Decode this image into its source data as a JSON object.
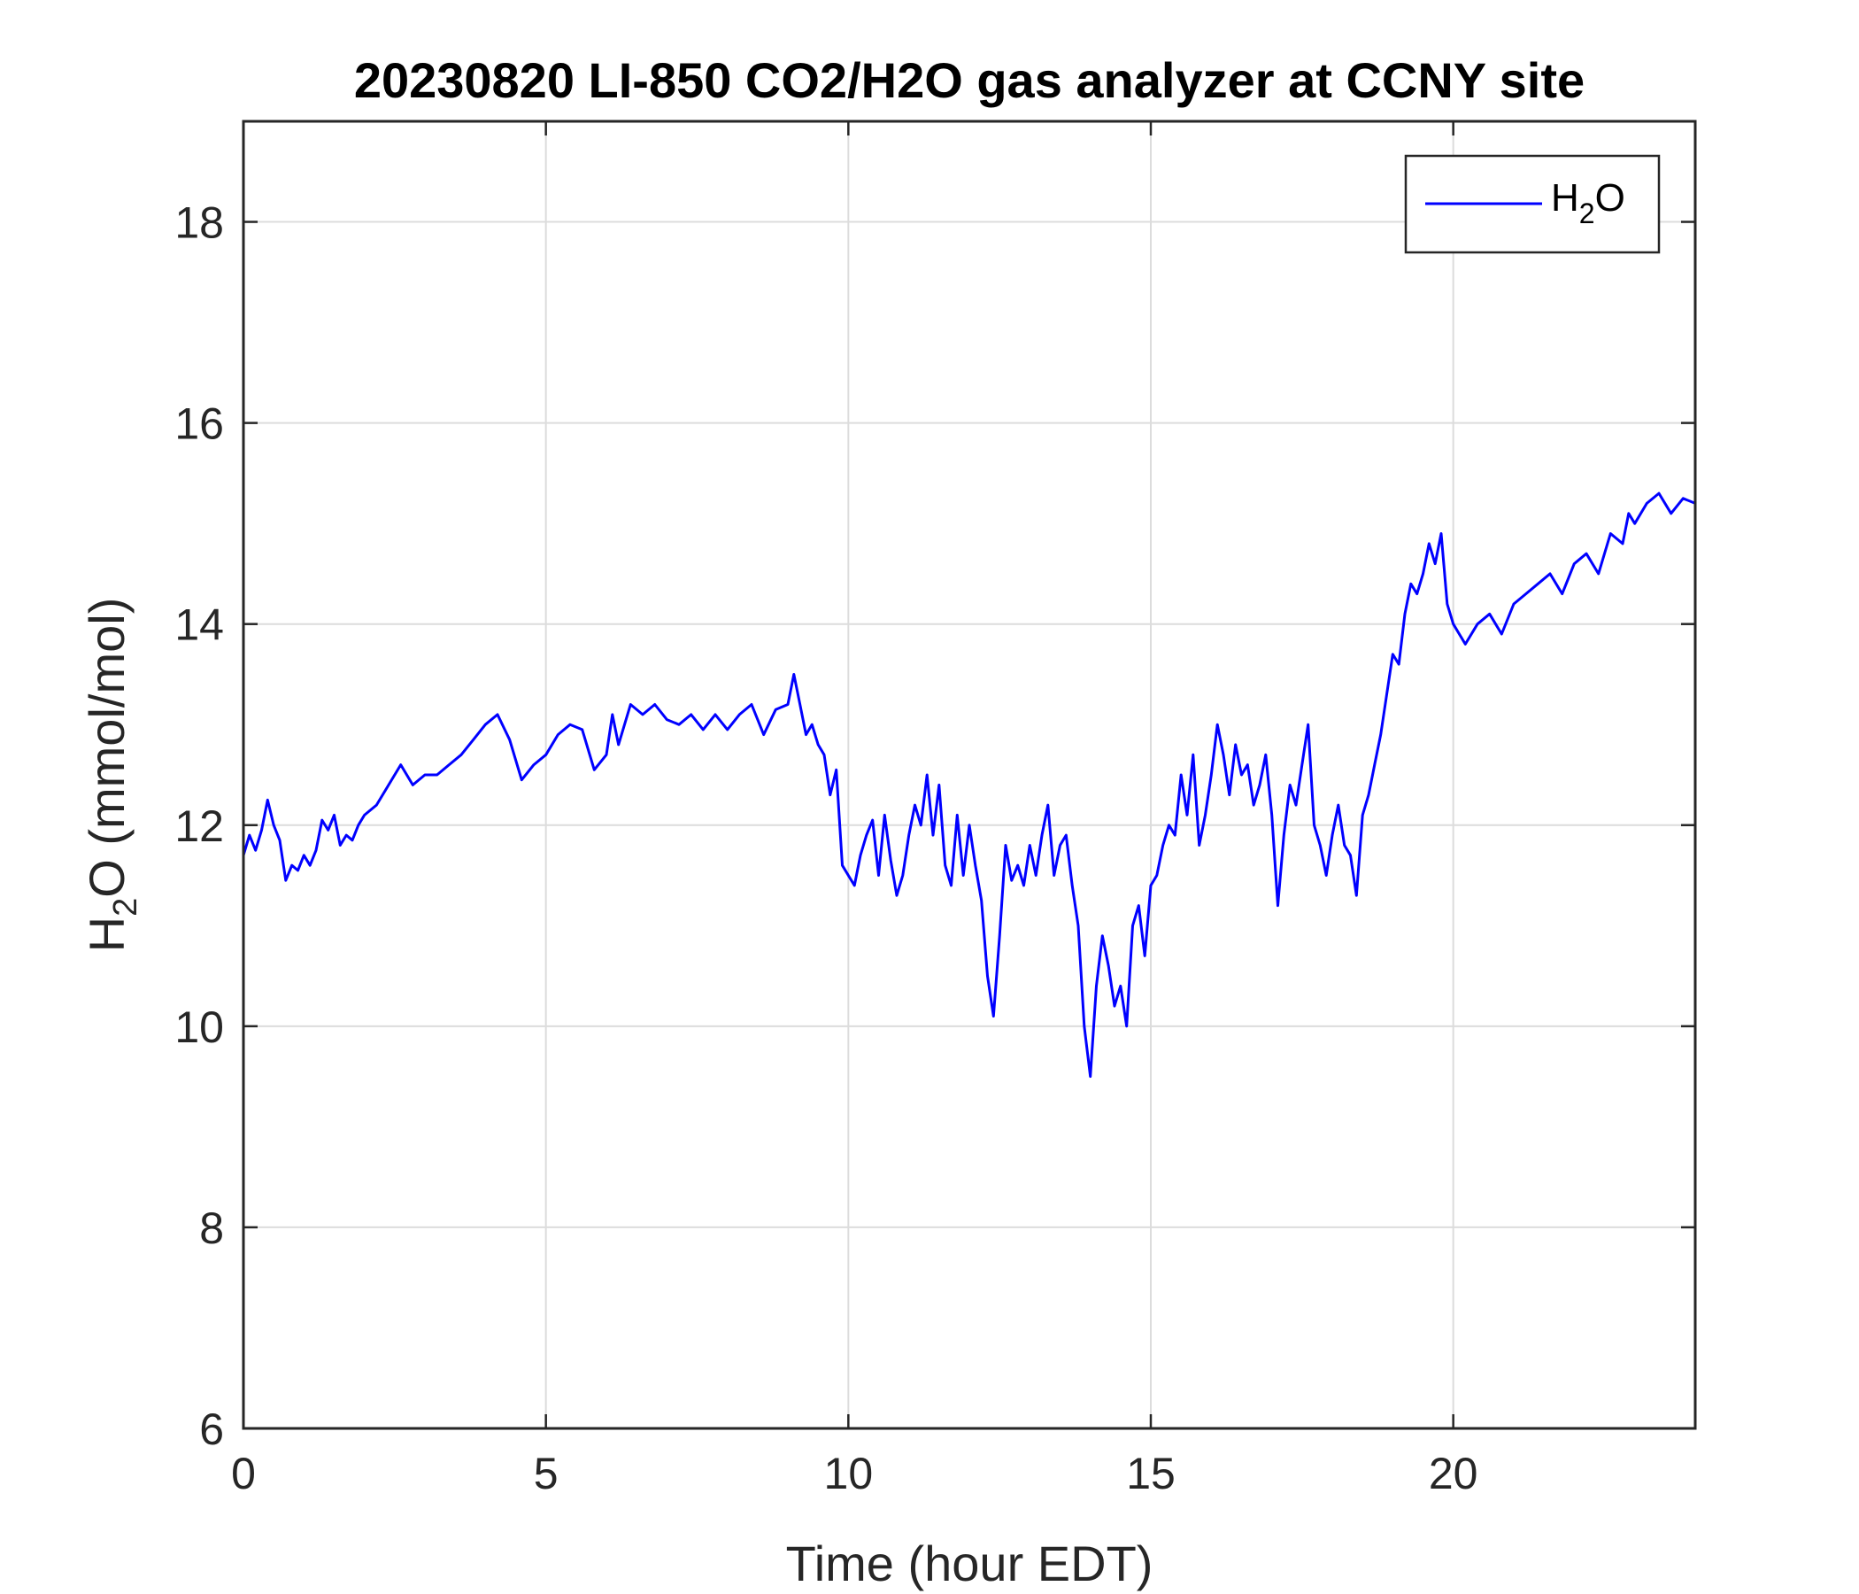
{
  "chart_data": {
    "type": "line",
    "title": "20230820 LI-850 CO2/H2O gas analyzer at CCNY site",
    "xlabel": "Time (hour EDT)",
    "ylabel": "H2O (mmol/mol)",
    "ylabel_parts": {
      "base": "H",
      "sub": "2",
      "rest": "O (mmol/mol)"
    },
    "xlim": [
      0,
      24
    ],
    "ylim": [
      6,
      19
    ],
    "xticks": [
      0,
      5,
      10,
      15,
      20
    ],
    "yticks": [
      6,
      8,
      10,
      12,
      14,
      16,
      18
    ],
    "grid": true,
    "legend_position": "top-right",
    "legend_label_parts": {
      "base": "H",
      "sub": "2",
      "rest": "O"
    },
    "series": [
      {
        "name": "H2O",
        "color": "#0000ff",
        "x": [
          0,
          0.1,
          0.2,
          0.3,
          0.4,
          0.5,
          0.6,
          0.7,
          0.8,
          0.9,
          1.0,
          1.1,
          1.2,
          1.3,
          1.4,
          1.5,
          1.6,
          1.7,
          1.8,
          1.9,
          2.0,
          2.2,
          2.4,
          2.6,
          2.8,
          3.0,
          3.2,
          3.4,
          3.6,
          3.8,
          4.0,
          4.2,
          4.4,
          4.6,
          4.8,
          5.0,
          5.2,
          5.4,
          5.6,
          5.8,
          6.0,
          6.1,
          6.2,
          6.4,
          6.6,
          6.8,
          7.0,
          7.2,
          7.4,
          7.6,
          7.8,
          8.0,
          8.2,
          8.4,
          8.6,
          8.8,
          9.0,
          9.1,
          9.2,
          9.3,
          9.4,
          9.5,
          9.6,
          9.7,
          9.8,
          9.9,
          10.0,
          10.1,
          10.2,
          10.3,
          10.4,
          10.5,
          10.6,
          10.7,
          10.8,
          10.9,
          11.0,
          11.1,
          11.2,
          11.3,
          11.4,
          11.5,
          11.6,
          11.7,
          11.8,
          11.9,
          12.0,
          12.1,
          12.2,
          12.3,
          12.4,
          12.5,
          12.6,
          12.7,
          12.8,
          12.9,
          13.0,
          13.1,
          13.2,
          13.3,
          13.4,
          13.5,
          13.6,
          13.7,
          13.8,
          13.9,
          14.0,
          14.1,
          14.2,
          14.3,
          14.4,
          14.5,
          14.6,
          14.7,
          14.8,
          14.9,
          15.0,
          15.1,
          15.2,
          15.3,
          15.4,
          15.5,
          15.6,
          15.7,
          15.8,
          15.9,
          16.0,
          16.1,
          16.2,
          16.3,
          16.4,
          16.5,
          16.6,
          16.7,
          16.8,
          16.9,
          17.0,
          17.1,
          17.2,
          17.3,
          17.4,
          17.5,
          17.6,
          17.7,
          17.8,
          17.9,
          18.0,
          18.1,
          18.2,
          18.3,
          18.4,
          18.5,
          18.6,
          18.7,
          18.8,
          18.9,
          19.0,
          19.1,
          19.2,
          19.3,
          19.4,
          19.5,
          19.6,
          19.7,
          19.8,
          19.9,
          20.0,
          20.2,
          20.4,
          20.6,
          20.8,
          21.0,
          21.2,
          21.4,
          21.6,
          21.8,
          22.0,
          22.2,
          22.4,
          22.6,
          22.8,
          22.9,
          23.0,
          23.2,
          23.4,
          23.6,
          23.8,
          24.0
        ],
        "y": [
          11.7,
          11.9,
          11.75,
          11.95,
          12.25,
          12.0,
          11.85,
          11.45,
          11.6,
          11.55,
          11.7,
          11.6,
          11.75,
          12.05,
          11.95,
          12.1,
          11.8,
          11.9,
          11.85,
          12.0,
          12.1,
          12.2,
          12.4,
          12.6,
          12.4,
          12.5,
          12.5,
          12.6,
          12.7,
          12.85,
          13.0,
          13.1,
          12.85,
          12.45,
          12.6,
          12.7,
          12.9,
          13.0,
          12.95,
          12.55,
          12.7,
          13.1,
          12.8,
          13.2,
          13.1,
          13.2,
          13.05,
          13.0,
          13.1,
          12.95,
          13.1,
          12.95,
          13.1,
          13.2,
          12.9,
          13.15,
          13.2,
          13.5,
          13.2,
          12.9,
          13.0,
          12.8,
          12.7,
          12.3,
          12.55,
          11.6,
          11.5,
          11.4,
          11.7,
          11.9,
          12.05,
          11.5,
          12.1,
          11.65,
          11.3,
          11.5,
          11.9,
          12.2,
          12.0,
          12.5,
          11.9,
          12.4,
          11.6,
          11.4,
          12.1,
          11.5,
          12.0,
          11.6,
          11.25,
          10.5,
          10.1,
          10.9,
          11.8,
          11.45,
          11.6,
          11.4,
          11.8,
          11.5,
          11.9,
          12.2,
          11.5,
          11.8,
          11.9,
          11.4,
          11.0,
          10.0,
          9.5,
          10.4,
          10.9,
          10.6,
          10.2,
          10.4,
          10.0,
          11.0,
          11.2,
          10.7,
          11.4,
          11.5,
          11.8,
          12.0,
          11.9,
          12.5,
          12.1,
          12.7,
          11.8,
          12.1,
          12.5,
          13.0,
          12.7,
          12.3,
          12.8,
          12.5,
          12.6,
          12.2,
          12.4,
          12.7,
          12.1,
          11.2,
          11.9,
          12.4,
          12.2,
          12.6,
          13.0,
          12.0,
          11.8,
          11.5,
          11.9,
          12.2,
          11.8,
          11.7,
          11.3,
          12.1,
          12.3,
          12.6,
          12.9,
          13.3,
          13.7,
          13.6,
          14.1,
          14.4,
          14.3,
          14.5,
          14.8,
          14.6,
          14.9,
          14.2,
          14.0,
          13.8,
          14.0,
          14.1,
          13.9,
          14.2,
          14.3,
          14.4,
          14.5,
          14.3,
          14.6,
          14.7,
          14.5,
          14.9,
          14.8,
          15.1,
          15.0,
          15.2,
          15.3,
          15.1,
          15.25,
          15.2
        ]
      }
    ]
  }
}
